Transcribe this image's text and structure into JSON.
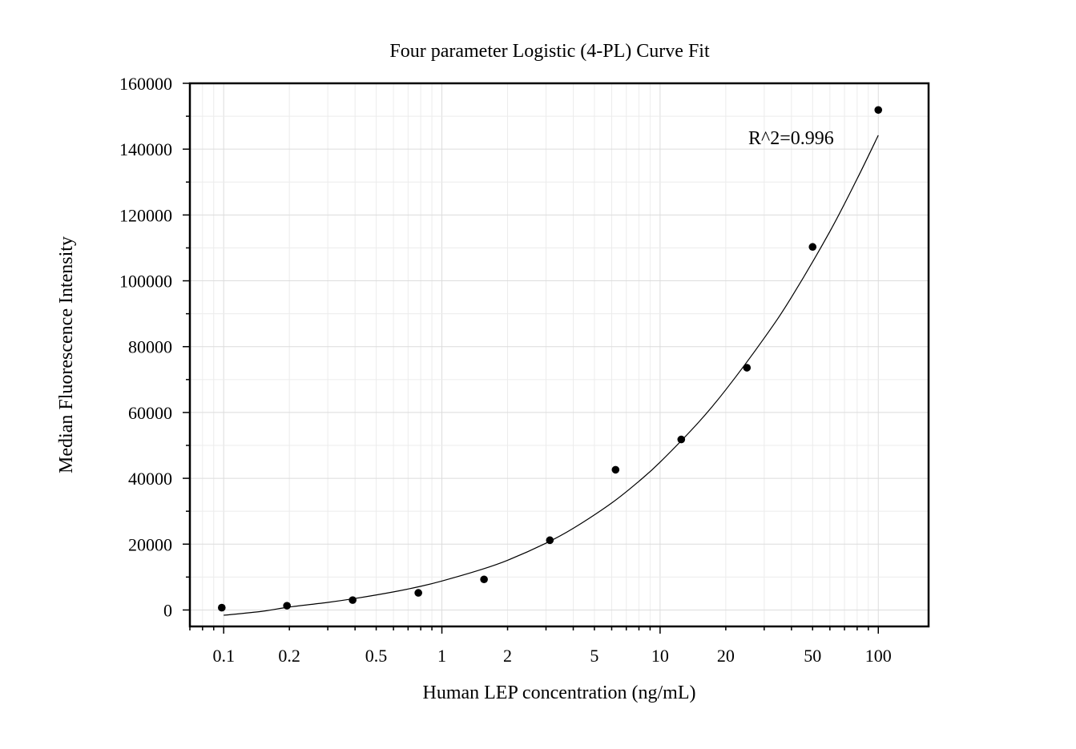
{
  "chart_data": {
    "type": "scatter",
    "title": "Four parameter Logistic (4-PL) Curve Fit",
    "xlabel": "Human LEP concentration (ng/mL)",
    "ylabel": "Median Fluorescence Intensity",
    "xscale": "log",
    "xlim": [
      0.07,
      170
    ],
    "ylim": [
      -5000,
      160000
    ],
    "grid": true,
    "x_ticks": [
      {
        "value": 0.1,
        "label": "0.1"
      },
      {
        "value": 0.2,
        "label": "0.2"
      },
      {
        "value": 0.5,
        "label": "0.5"
      },
      {
        "value": 1,
        "label": "1"
      },
      {
        "value": 2,
        "label": "2"
      },
      {
        "value": 5,
        "label": "5"
      },
      {
        "value": 10,
        "label": "10"
      },
      {
        "value": 20,
        "label": "20"
      },
      {
        "value": 50,
        "label": "50"
      },
      {
        "value": 100,
        "label": "100"
      }
    ],
    "y_ticks": [
      {
        "value": 0,
        "label": "0"
      },
      {
        "value": 20000,
        "label": "20000"
      },
      {
        "value": 40000,
        "label": "40000"
      },
      {
        "value": 60000,
        "label": "60000"
      },
      {
        "value": 80000,
        "label": "80000"
      },
      {
        "value": 100000,
        "label": "100000"
      },
      {
        "value": 120000,
        "label": "120000"
      },
      {
        "value": 140000,
        "label": "140000"
      },
      {
        "value": 160000,
        "label": "160000"
      }
    ],
    "points": {
      "x": [
        0.098,
        0.195,
        0.39,
        0.78,
        1.56,
        3.125,
        6.25,
        12.5,
        25,
        50,
        100
      ],
      "y": [
        700,
        1300,
        3000,
        5200,
        9300,
        21200,
        42600,
        51800,
        73600,
        110300,
        151900
      ]
    },
    "fit_curve": {
      "x": [
        0.1,
        0.15,
        0.2,
        0.3,
        0.4,
        0.6,
        0.8,
        1,
        1.5,
        2,
        3,
        4,
        6,
        8,
        10,
        15,
        20,
        30,
        40,
        60,
        80,
        100
      ],
      "y": [
        -1600,
        -400,
        900,
        2300,
        3500,
        5500,
        7200,
        8800,
        12200,
        15100,
        20300,
        24800,
        32500,
        39100,
        44900,
        57000,
        66900,
        82600,
        95000,
        115000,
        131000,
        144200
      ]
    },
    "annotations": [
      {
        "text": "R^2=0.996"
      }
    ]
  }
}
